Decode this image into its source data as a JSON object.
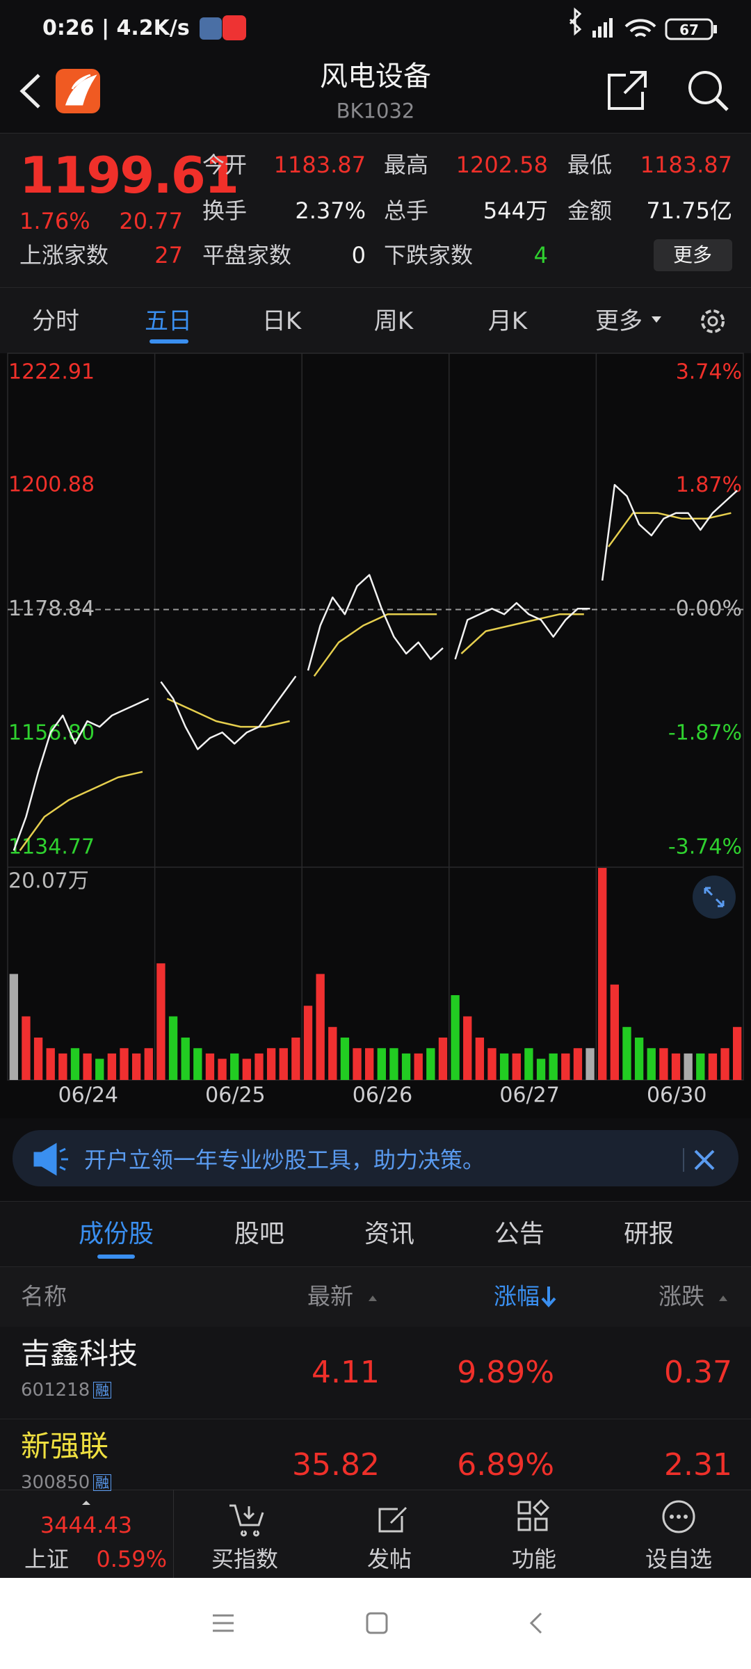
{
  "status": {
    "time": "0:26 | 4.2K/s",
    "battery": "67"
  },
  "header": {
    "title": "风电设备",
    "code": "BK1032"
  },
  "quote": {
    "price": "1199.61",
    "change_pct": "1.76%",
    "change": "20.77",
    "fields": [
      [
        "今开",
        "1183.87"
      ],
      [
        "最高",
        "1202.58"
      ],
      [
        "最低",
        "1183.87"
      ],
      [
        "换手",
        "2.37%"
      ],
      [
        "总手",
        "544万"
      ],
      [
        "金额",
        "71.75亿"
      ]
    ],
    "up_label": "上涨家数",
    "up": "27",
    "flat_label": "平盘家数",
    "flat": "0",
    "down_label": "下跌家数",
    "down": "4",
    "more": "更多"
  },
  "tabs": [
    "分时",
    "五日",
    "日K",
    "周K",
    "月K",
    "更多"
  ],
  "chart_data": {
    "type": "line",
    "x": [
      "06/24",
      "06/25",
      "06/26",
      "06/27",
      "06/30"
    ],
    "ylim": [
      1134.77,
      1222.91
    ],
    "yticks": [
      1222.91,
      1200.88,
      1178.84,
      {
        "value": 1156.8,
        "label": "1156.80"
      },
      1134.77
    ],
    "y2lim": [
      -3.74,
      3.74
    ],
    "y2ticks": [
      {
        "value": 3.74,
        "label": "3.74%"
      },
      {
        "value": 1.87,
        "label": "1.87%"
      },
      {
        "value": 0,
        "label": "0.00%"
      },
      {
        "value": -1.87,
        "label": "-1.87%"
      },
      {
        "value": -3.74,
        "label": "-3.74%"
      }
    ],
    "price": [
      [
        1136,
        1142,
        1150,
        1157,
        1160,
        1155,
        1159,
        1158,
        1160,
        1161,
        1162,
        1163
      ],
      [
        1166,
        1163,
        1158,
        1154,
        1156,
        1157,
        1155,
        1157,
        1158,
        1161,
        1164,
        1167
      ],
      [
        1168,
        1176,
        1181,
        1178,
        1183,
        1185,
        1179,
        1174,
        1171,
        1173,
        1170,
        1172
      ],
      [
        1170,
        1177,
        1178,
        1179,
        1178,
        1180,
        1178,
        1177,
        1174,
        1177,
        1179,
        1179
      ],
      [
        1184,
        1201,
        1199,
        1194,
        1192,
        1195,
        1196,
        1196,
        1193,
        1196,
        1198,
        1200
      ]
    ],
    "average": [
      [
        1136,
        1142,
        1145,
        1147,
        1149,
        1150
      ],
      [
        1163,
        1161,
        1159,
        1158,
        1158,
        1159
      ],
      [
        1167,
        1173,
        1176,
        1178,
        1178,
        1178
      ],
      [
        1171,
        1175,
        1176,
        1177,
        1178,
        1178
      ],
      [
        1190,
        1196,
        1196,
        1195,
        1195,
        1196
      ]
    ],
    "volume_ylim": [
      0,
      20.07
    ],
    "volume_ticks": [
      {
        "value": 20.07,
        "label": "20.07万"
      }
    ],
    "volume": [
      [
        10,
        6,
        4,
        3,
        2.5,
        3,
        2.5,
        2,
        2.5,
        3,
        2.5,
        3
      ],
      [
        11,
        6,
        4,
        3,
        2.5,
        2,
        2.5,
        2,
        2.5,
        3,
        3,
        4
      ],
      [
        7,
        10,
        5,
        4,
        3,
        3,
        3,
        3,
        2.5,
        2.5,
        3,
        4
      ],
      [
        8,
        6,
        4,
        3,
        2.5,
        2.5,
        3,
        2,
        2.5,
        2.5,
        3,
        3
      ],
      [
        20,
        9,
        5,
        4,
        3,
        3,
        2.5,
        2.5,
        2.5,
        2.5,
        3,
        5
      ]
    ],
    "colors": {
      "price": "#f2f2f2",
      "average": "#e6cf4e",
      "up": "#f03030",
      "down": "#22cc22",
      "flat": "#aaaaaa"
    }
  },
  "banner": "开户立领一年专业炒股工具，助力决策。",
  "list_tabs": [
    "成份股",
    "股吧",
    "资讯",
    "公告",
    "研报"
  ],
  "table": {
    "columns": [
      "名称",
      "最新",
      "涨幅",
      "涨跌"
    ],
    "rows": [
      {
        "name": "吉鑫科技",
        "code": "601218",
        "tag": "融",
        "price": "4.11",
        "pct": "9.89%",
        "change": "0.37"
      },
      {
        "name": "新强联",
        "code": "300850",
        "tag": "融",
        "price": "35.82",
        "pct": "6.89%",
        "change": "2.31"
      }
    ]
  },
  "bottom": {
    "index_value": "3444.43",
    "index_name": "上证",
    "index_pct": "0.59%",
    "items": [
      "买指数",
      "发帖",
      "功能",
      "设自选"
    ]
  }
}
